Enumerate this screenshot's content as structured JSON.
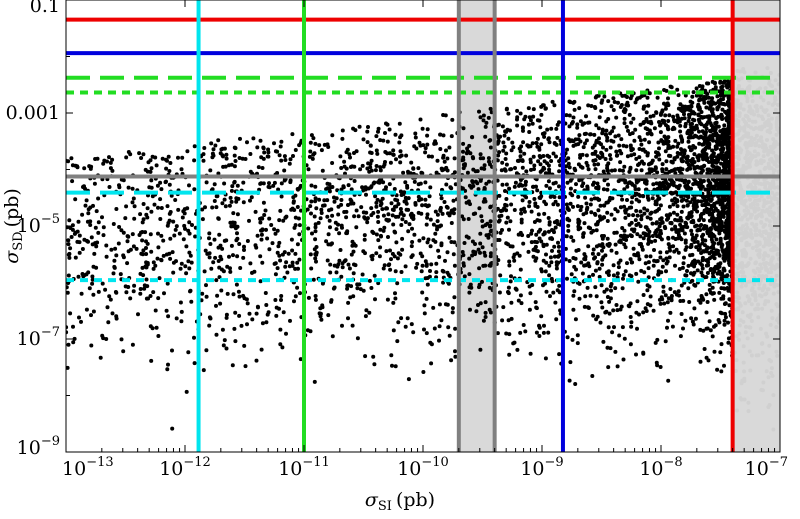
{
  "chart_data": {
    "type": "scatter",
    "title": "",
    "xlabel": "σSI (pb)",
    "ylabel": "σSD (pb)",
    "xlabel_parts": {
      "symbol": "σ",
      "subscript": "SI",
      "unit": "(pb)"
    },
    "ylabel_parts": {
      "symbol": "σ",
      "subscript": "SD",
      "unit": "(pb)"
    },
    "x_scale": "log",
    "y_scale": "log",
    "xlim": [
      1e-13,
      1e-07
    ],
    "ylim": [
      1e-09,
      0.1
    ],
    "x_ticks": [
      {
        "value": 1e-13,
        "base": "10",
        "exp": "−13"
      },
      {
        "value": 1e-12,
        "base": "10",
        "exp": "−12"
      },
      {
        "value": 1e-11,
        "base": "10",
        "exp": "−11"
      },
      {
        "value": 1e-10,
        "base": "10",
        "exp": "−10"
      },
      {
        "value": 1e-09,
        "base": "10",
        "exp": "−9"
      },
      {
        "value": 1e-08,
        "base": "10",
        "exp": "−8"
      },
      {
        "value": 1e-07,
        "base": "10",
        "exp": "−7"
      }
    ],
    "y_ticks": [
      {
        "value": 1e-09,
        "base": "10",
        "exp": "−9"
      },
      {
        "value": 1e-07,
        "base": "10",
        "exp": "−7"
      },
      {
        "value": 1e-05,
        "base": "10",
        "exp": "−5"
      },
      {
        "value": 0.001,
        "text": "0.001"
      },
      {
        "value": 0.1,
        "text": "0.1"
      }
    ],
    "grid": false,
    "shaded_band": {
      "x": [
        2e-10,
        4e-10
      ],
      "color": "#d9d9d9"
    },
    "shaded_region": {
      "x_min": 4e-08,
      "color": "#d9d9d9"
    },
    "vertical_lines": [
      {
        "x": 1.3e-12,
        "color": "#00e5ee",
        "style": "solid"
      },
      {
        "x": 1e-11,
        "color": "#22dd22",
        "style": "solid"
      },
      {
        "x": 2e-10,
        "color": "#808080",
        "style": "solid"
      },
      {
        "x": 4e-10,
        "color": "#808080",
        "style": "solid"
      },
      {
        "x": 1.5e-09,
        "color": "#0000dd",
        "style": "solid"
      },
      {
        "x": 4e-08,
        "color": "#ee0000",
        "style": "solid"
      }
    ],
    "horizontal_lines": [
      {
        "y": 0.045,
        "color": "#ee0000",
        "style": "solid"
      },
      {
        "y": 0.0115,
        "color": "#0000dd",
        "style": "solid"
      },
      {
        "y": 0.0042,
        "color": "#22dd22",
        "style": "dashed"
      },
      {
        "y": 0.0023,
        "color": "#22dd22",
        "style": "dotted"
      },
      {
        "y": 7.5e-05,
        "color": "#808080",
        "style": "solid"
      },
      {
        "y": 3.9e-05,
        "color": "#00e5ee",
        "style": "dashed"
      },
      {
        "y": 1.1e-06,
        "color": "#00e5ee",
        "style": "dotted"
      }
    ],
    "series": [
      {
        "marker_color": "#000000",
        "x_log_range": [
          -13,
          -7.4
        ],
        "y_log_range": [
          -9,
          -2.4
        ],
        "points": [
          [
            2.1e-13,
            3.5e-05
          ],
          [
            3.4e-13,
            1.2e-06
          ],
          [
            5.2e-13,
            4.1e-08
          ],
          [
            7.8e-13,
            2.6e-09
          ],
          [
            1.5e-12,
            9e-07
          ],
          [
            2.7e-12,
            3.1e-05
          ],
          [
            4.4e-12,
            6.5e-08
          ],
          [
            6e-12,
            1.8e-06
          ],
          [
            8.9e-12,
            4.4e-05
          ],
          [
            1.4e-11,
            2.2e-07
          ],
          [
            2.3e-11,
            7.5e-06
          ],
          [
            3.6e-11,
            0.00011
          ],
          [
            5.9e-11,
            3.3e-08
          ],
          [
            8.1e-11,
            5.2e-06
          ],
          [
            1.3e-10,
            8.8e-05
          ],
          [
            2.9e-10,
            4e-07
          ],
          [
            5.5e-10,
            2.4e-05
          ],
          [
            8e-10,
            0.00015
          ],
          [
            1.2e-09,
            6.1e-06
          ],
          [
            2.3e-09,
            0.00029
          ],
          [
            3.8e-09,
            7.2e-07
          ],
          [
            6.1e-09,
            4.5e-05
          ],
          [
            9.4e-09,
            0.00019
          ],
          [
            1.5e-08,
            9.1e-06
          ],
          [
            2.6e-08,
            0.00034
          ],
          [
            3.5e-08,
            2.1e-05
          ],
          [
            1.9e-09,
            1.6e-08
          ],
          [
            7.1e-09,
            5.5e-08
          ],
          [
            1.2e-08,
            2.9e-07
          ],
          [
            4.2e-09,
            0.00083
          ]
        ]
      },
      {
        "marker_color": "#d0d0d0",
        "x_log_range": [
          -7.4,
          -7
        ],
        "y_log_range": [
          -9,
          -2.2
        ],
        "points": [
          [
            4.5e-08,
            3e-05
          ],
          [
            5.3e-08,
            0.00011
          ],
          [
            6.2e-08,
            2.2e-06
          ],
          [
            7.1e-08,
            8.4e-08
          ],
          [
            8.3e-08,
            4.6e-05
          ],
          [
            9.2e-08,
            0.00031
          ],
          [
            5.8e-08,
            7.3e-07
          ],
          [
            6.9e-08,
            0.0019
          ],
          [
            8.8e-08,
            2.5e-09
          ],
          [
            4.8e-08,
            6e-06
          ]
        ]
      }
    ]
  }
}
